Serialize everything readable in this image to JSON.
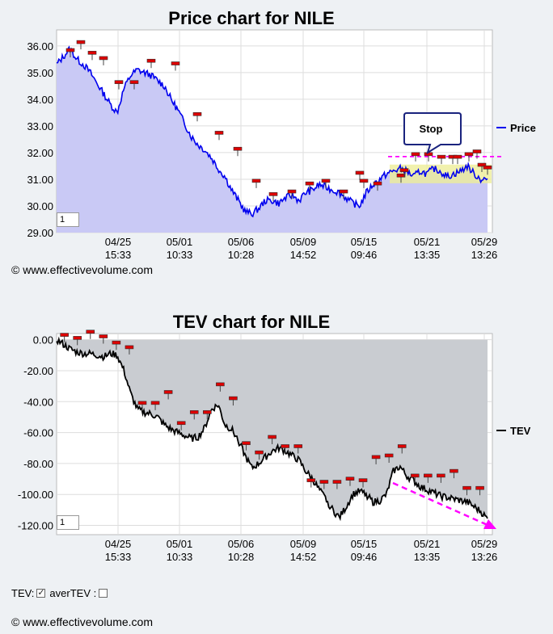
{
  "chart_data": [
    {
      "type": "line",
      "title": "Price chart for NILE",
      "y_ticks": [
        "36.00",
        "35.00",
        "34.00",
        "33.00",
        "32.00",
        "31.00",
        "30.00",
        "29.00"
      ],
      "ylim": [
        29,
        36.6
      ],
      "x_ticks": [
        {
          "date": "04/25",
          "time": "15:33"
        },
        {
          "date": "05/01",
          "time": "10:33"
        },
        {
          "date": "05/06",
          "time": "10:28"
        },
        {
          "date": "05/09",
          "time": "14:52"
        },
        {
          "date": "05/15",
          "time": "09:46"
        },
        {
          "date": "05/21",
          "time": "13:35"
        },
        {
          "date": "05/29",
          "time": "13:26"
        }
      ],
      "legend": "Price",
      "legend_position": "right",
      "annotation": "Stop",
      "zoom_value": "1",
      "series_points": [
        35.3,
        35.6,
        35.9,
        35.5,
        35.3,
        35.0,
        34.6,
        34.2,
        33.8,
        33.5,
        34.4,
        34.9,
        35.1,
        35.0,
        34.9,
        34.7,
        34.5,
        34.0,
        33.6,
        33.1,
        32.6,
        32.3,
        32.1,
        31.8,
        31.4,
        31.1,
        30.6,
        30.2,
        29.8,
        29.7,
        29.9,
        30.2,
        30.2,
        30.1,
        30.3,
        30.4,
        30.2,
        30.5,
        30.6,
        30.8,
        30.7,
        30.6,
        30.5,
        30.3,
        30.1,
        30.0,
        30.5,
        30.8,
        31.0,
        31.2,
        31.3,
        31.4,
        31.3,
        31.1,
        31.3,
        31.2,
        31.4,
        31.3,
        31.1,
        31.2,
        31.3,
        31.5,
        31.2,
        31.0,
        31.0
      ],
      "markers": [
        35.6,
        35.9,
        35.5,
        35.3,
        34.4,
        34.4,
        35.2,
        35.1,
        33.2,
        32.5,
        31.9,
        30.7,
        30.2,
        30.3,
        30.6,
        30.7,
        30.3,
        31.0,
        30.7,
        30.6,
        30.9,
        31.1,
        31.7,
        31.7,
        31.6,
        31.6,
        31.6,
        31.7,
        31.8,
        31.3,
        31.2
      ]
    },
    {
      "type": "line",
      "title": "TEV chart for NILE",
      "y_ticks": [
        "0.00",
        "-20.00",
        "-40.00",
        "-60.00",
        "-80.00",
        "-100.00",
        "-120.00"
      ],
      "ylim": [
        -126,
        4
      ],
      "x_ticks": [
        {
          "date": "04/25",
          "time": "15:33"
        },
        {
          "date": "05/01",
          "time": "10:33"
        },
        {
          "date": "05/06",
          "time": "10:28"
        },
        {
          "date": "05/09",
          "time": "14:52"
        },
        {
          "date": "05/15",
          "time": "09:46"
        },
        {
          "date": "05/21",
          "time": "13:35"
        },
        {
          "date": "05/29",
          "time": "13:26"
        }
      ],
      "legend": "TEV",
      "legend_position": "right",
      "zoom_value": "1",
      "series_points": [
        0,
        -3,
        -6,
        -8,
        -9,
        -9,
        -10,
        -11,
        -9,
        -10,
        -20,
        -35,
        -45,
        -47,
        -48,
        -50,
        -55,
        -58,
        -60,
        -62,
        -64,
        -63,
        -57,
        -45,
        -42,
        -55,
        -58,
        -65,
        -75,
        -83,
        -80,
        -76,
        -72,
        -70,
        -72,
        -75,
        -78,
        -85,
        -90,
        -97,
        -103,
        -110,
        -115,
        -108,
        -100,
        -98,
        -100,
        -105,
        -104,
        -100,
        -85,
        -82,
        -88,
        -91,
        -95,
        -97,
        -99,
        -101,
        -102,
        -103,
        -104,
        -105,
        -108,
        -111,
        -116
      ],
      "markers": [
        -1,
        -3,
        1,
        -2,
        -6,
        -9,
        -45,
        -45,
        -38,
        -58,
        -51,
        -51,
        -33,
        -42,
        -71,
        -77,
        -67,
        -73,
        -73,
        -95,
        -96,
        -96,
        -94,
        -95,
        -80,
        -79,
        -73,
        -92,
        -92,
        -92,
        -89,
        -100,
        -100
      ]
    }
  ],
  "watermark": "© www.effectivevolume.com",
  "controls": {
    "tev_label": "TEV:",
    "avertev_label": "averTEV :",
    "tev_checked": true,
    "avertev_checked": false
  },
  "colors": {
    "price_line": "#0000ee",
    "price_fill": "#c9c9f5",
    "tev_line": "#000000",
    "tev_fill": "#c9ccd1",
    "stop_line": "#ff00ff",
    "band": "#eeee99",
    "marker": "#dd0000"
  }
}
